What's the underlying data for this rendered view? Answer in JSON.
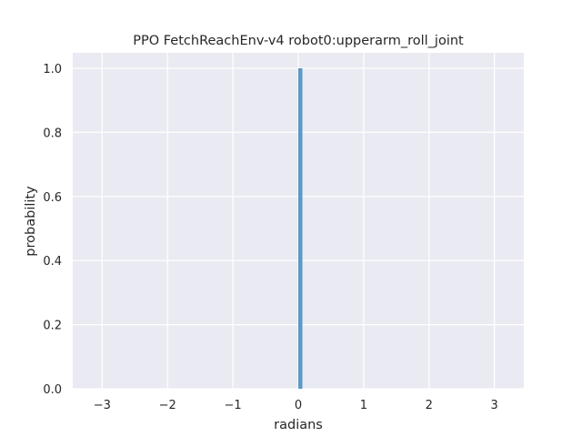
{
  "chart_data": {
    "type": "bar",
    "title": "PPO FetchReachEnv-v4 robot0:upperarm_roll_joint",
    "xlabel": "radians",
    "ylabel": "probability",
    "xlim": [
      -3.45,
      3.45
    ],
    "ylim": [
      0,
      1.0
    ],
    "xticks": [
      -3,
      -2,
      -1,
      0,
      1,
      2,
      3
    ],
    "xtick_labels": [
      "−3",
      "−2",
      "−1",
      "0",
      "1",
      "2",
      "3"
    ],
    "yticks": [
      0.0,
      0.2,
      0.4,
      0.6,
      0.8,
      1.0
    ],
    "ytick_labels": [
      "0.0",
      "0.2",
      "0.4",
      "0.6",
      "0.8",
      "1.0"
    ],
    "grid": true,
    "bars": [
      {
        "x_start": 0.0,
        "x_end": 0.0628,
        "value": 1.0
      }
    ],
    "colors": {
      "background": "#eaeaf2",
      "grid": "#ffffff",
      "bar": "#5a9ac9"
    }
  }
}
